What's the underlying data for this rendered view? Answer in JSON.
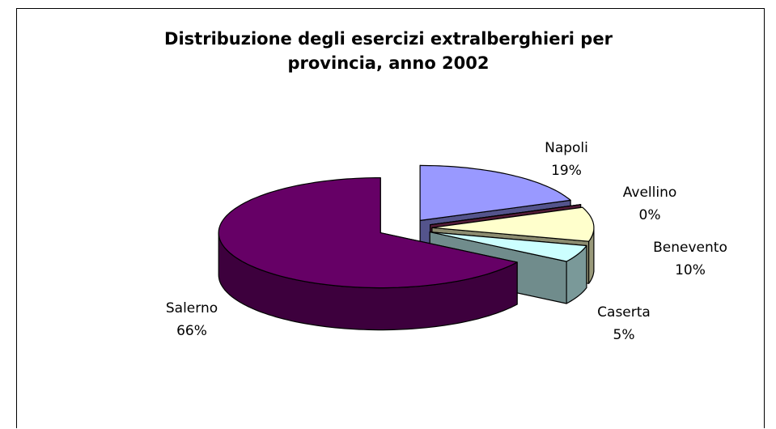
{
  "chart_data": {
    "type": "pie",
    "title": "Distribuzione degli esercizi extralberghieri per provincia, anno 2002",
    "categories": [
      "Napoli",
      "Avellino",
      "Benevento",
      "Caserta",
      "Salerno"
    ],
    "values": [
      19,
      0,
      10,
      5,
      66
    ],
    "value_labels": [
      "19%",
      "0%",
      "10%",
      "5%",
      "66%"
    ],
    "colors": [
      "#9999ff",
      "#993366",
      "#ffffcc",
      "#ccffff",
      "#660066"
    ]
  }
}
